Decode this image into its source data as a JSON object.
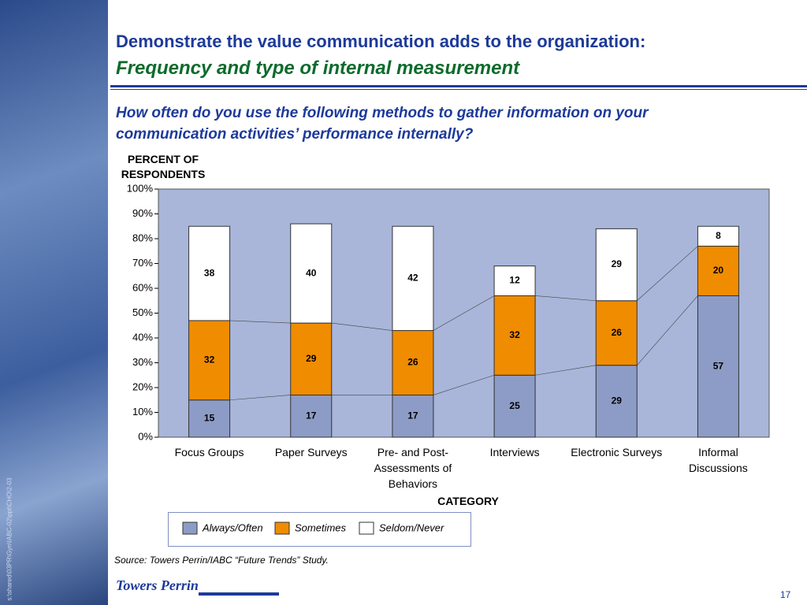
{
  "header": {
    "title": "Demonstrate the value communication adds to the organization:",
    "subtitle": "Frequency and type of internal measurement"
  },
  "question": "How often do you use the following methods to gather information on your communication activities’ performance internally?",
  "chart_data": {
    "type": "stacked_bar",
    "y_label": "PERCENT OF RESPONDENTS",
    "x_label": "CATEGORY",
    "categories": [
      "Focus Groups",
      "Paper Surveys",
      "Pre- and Post-Assessments of Behaviors",
      "Interviews",
      "Electronic Surveys",
      "Informal Discussions"
    ],
    "series": [
      {
        "name": "Always/Often",
        "color": "#8d9cc6",
        "values": [
          15,
          17,
          17,
          25,
          29,
          57
        ]
      },
      {
        "name": "Sometimes",
        "color": "#f08c00",
        "values": [
          32,
          29,
          26,
          32,
          26,
          20
        ]
      },
      {
        "name": "Seldom/Never",
        "color": "#ffffff",
        "values": [
          38,
          40,
          42,
          12,
          29,
          8
        ]
      }
    ],
    "ylim": [
      0,
      100
    ],
    "yticks": [
      {
        "value": 0,
        "label": "0%"
      },
      {
        "value": 10,
        "label": "10%"
      },
      {
        "value": 20,
        "label": "20%"
      },
      {
        "value": 30,
        "label": "30%"
      },
      {
        "value": 40,
        "label": "40%"
      },
      {
        "value": 50,
        "label": "50%"
      },
      {
        "value": 60,
        "label": "60%"
      },
      {
        "value": 70,
        "label": "70%"
      },
      {
        "value": 80,
        "label": "80%"
      },
      {
        "value": 90,
        "label": "90%"
      },
      {
        "value": 100,
        "label": "100%"
      }
    ],
    "plot_background": "#a9b6da"
  },
  "source": "Source: Towers Perrin/IABC “Future Trends” Study.",
  "footer": {
    "logo": "Towers Perrin",
    "page": "17",
    "file_path": "s:\\shared\\03PR\\Gyn\\IABC-02\\ppt\\CHO\\2-03"
  }
}
